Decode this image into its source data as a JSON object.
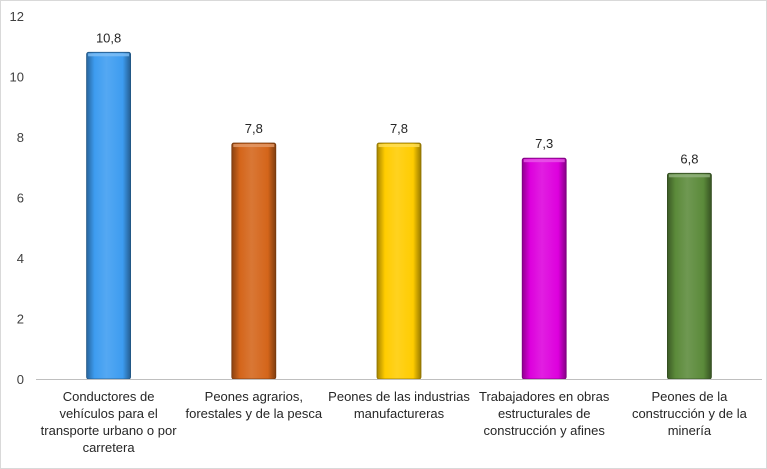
{
  "chart_data": {
    "type": "bar",
    "categories": [
      "Conductores de vehículos para el transporte urbano o por carretera",
      "Peones agrarios, forestales y de la pesca",
      "Peones de las industrias manufactureras",
      "Trabajadores en obras estructurales de construcción y afines",
      "Peones de la construcción y de la minería"
    ],
    "values": [
      10.8,
      7.8,
      7.8,
      7.3,
      6.8
    ],
    "data_labels": [
      "10,8",
      "7,8",
      "7,8",
      "7,3",
      "6,8"
    ],
    "bar_colors": [
      "#3d9cf0",
      "#d4651a",
      "#ffcc00",
      "#dd00dd",
      "#5b8a3a"
    ],
    "ylim": [
      0,
      12
    ],
    "yticks": [
      0,
      2,
      4,
      6,
      8,
      10,
      12
    ],
    "title": "",
    "xlabel": "",
    "ylabel": "",
    "grid": false,
    "legend": "none"
  }
}
